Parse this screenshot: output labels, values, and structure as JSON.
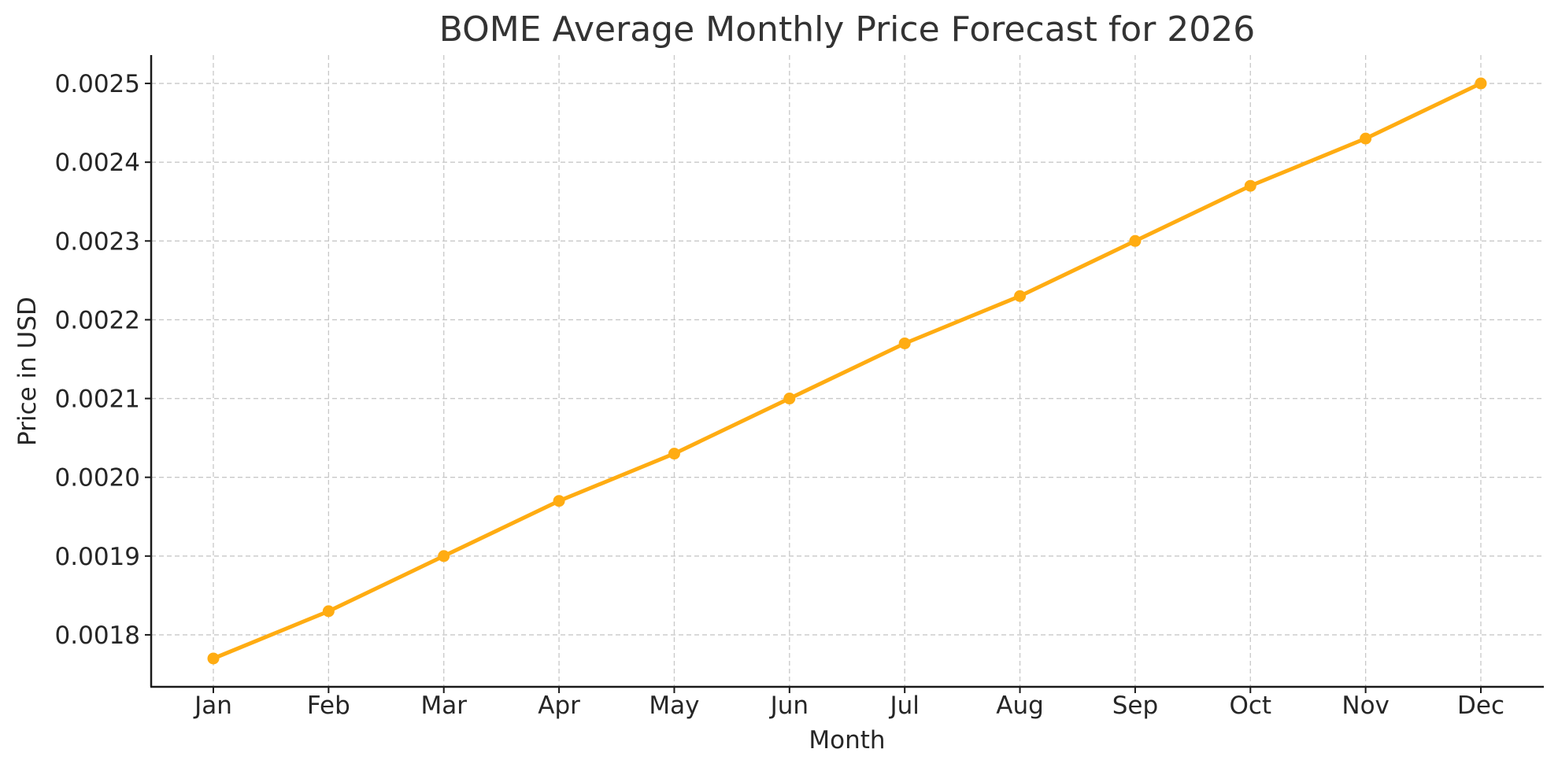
{
  "chart_data": {
    "type": "line",
    "title": "BOME Average Monthly Price Forecast for 2026",
    "xlabel": "Month",
    "ylabel": "Price in USD",
    "categories": [
      "Jan",
      "Feb",
      "Mar",
      "Apr",
      "May",
      "Jun",
      "Jul",
      "Aug",
      "Sep",
      "Oct",
      "Nov",
      "Dec"
    ],
    "series": [
      {
        "values": [
          0.00177,
          0.00183,
          0.0019,
          0.00197,
          0.00203,
          0.0021,
          0.00217,
          0.00223,
          0.0023,
          0.00237,
          0.00243,
          0.0025
        ],
        "color": "#FFAC12",
        "marker": "circle"
      }
    ],
    "yticks": [
      "0.0018",
      "0.0019",
      "0.0020",
      "0.0021",
      "0.0022",
      "0.0023",
      "0.0024",
      "0.0025"
    ],
    "ylim": [
      0.001734,
      0.002536
    ],
    "grid": true,
    "legend": "none"
  }
}
